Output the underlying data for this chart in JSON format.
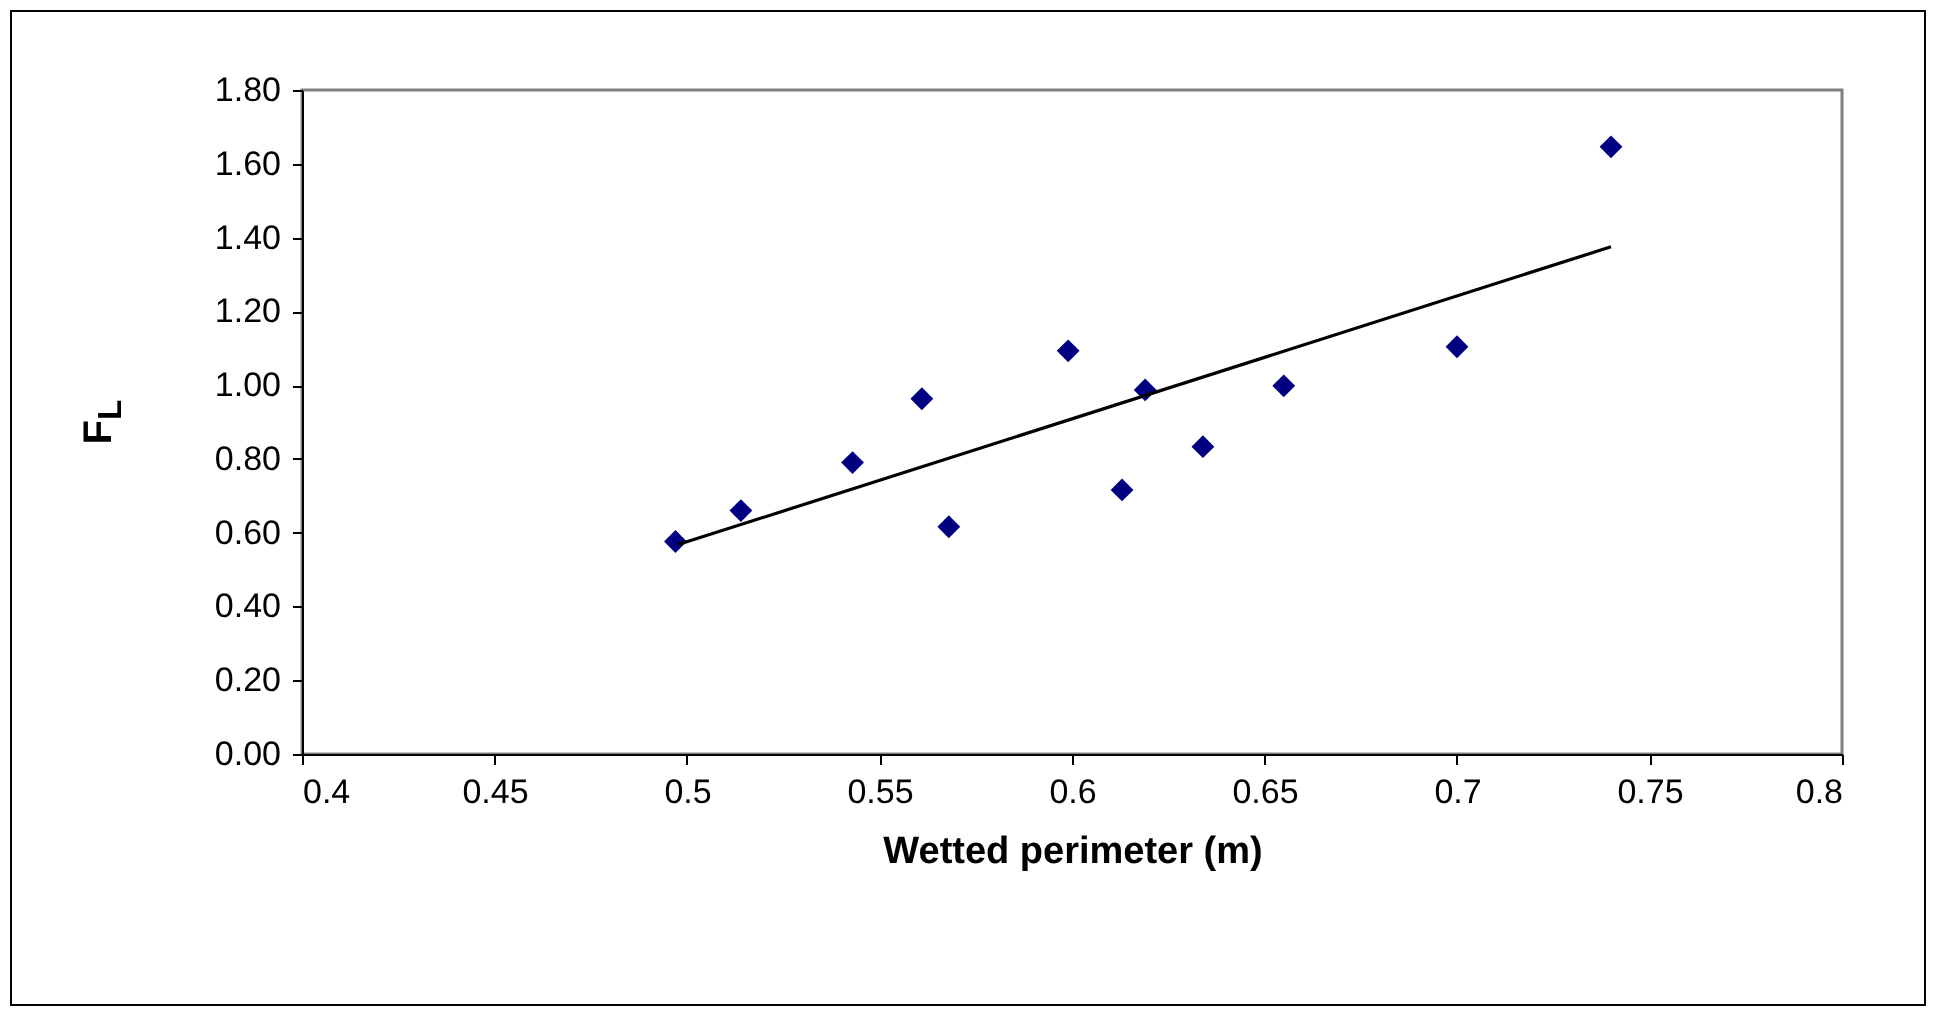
{
  "chart_data": {
    "type": "scatter",
    "xlabel": "Wetted perimeter (m)",
    "ylabel": "F$_{L}$",
    "x": [
      0.497,
      0.514,
      0.543,
      0.561,
      0.568,
      0.599,
      0.613,
      0.619,
      0.634,
      0.655,
      0.7,
      0.74
    ],
    "series": [
      {
        "color": "#000080",
        "marker": "diamond",
        "values": [
          0.576,
          0.66,
          0.79,
          0.963,
          0.616,
          1.093,
          0.716,
          0.987,
          0.833,
          0.998,
          1.104,
          1.646
        ]
      },
      {
        "type": "line",
        "color": "#000000",
        "marker": "none",
        "x": [
          0.4975,
          0.74
        ],
        "values": [
          0.567,
          1.375
        ]
      }
    ],
    "xlim": [
      0.4,
      0.8
    ],
    "xticks": [
      0.4,
      0.45,
      0.5,
      0.55,
      0.6,
      0.65,
      0.7,
      0.75,
      0.8
    ],
    "ylim": [
      0,
      1.8
    ],
    "yticks": [
      {
        "value": 0,
        "label": "0.00"
      },
      {
        "value": 0.2,
        "label": "0.20"
      },
      {
        "value": 0.4,
        "label": "0.40"
      },
      {
        "value": 0.6,
        "label": "0.60"
      },
      {
        "value": 0.8,
        "label": "0.80"
      },
      {
        "value": 1,
        "label": "1.00"
      },
      {
        "value": 1.2,
        "label": "1.20"
      },
      {
        "value": 1.4,
        "label": "1.40"
      },
      {
        "value": 1.6,
        "label": "1.60"
      },
      {
        "value": 1.8,
        "label": "1.80"
      }
    ]
  }
}
